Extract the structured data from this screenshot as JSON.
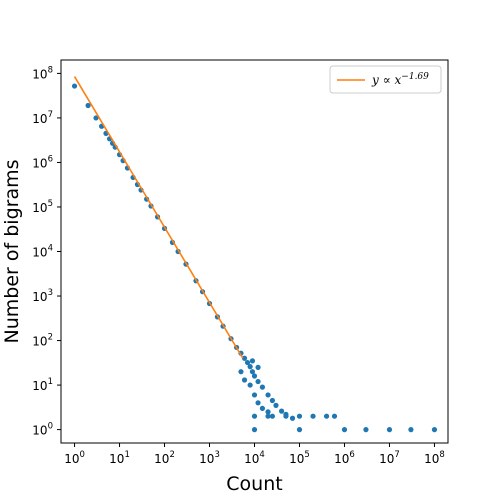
{
  "chart_data": {
    "type": "scatter",
    "title": "",
    "xlabel": "Count",
    "ylabel": "Number of bigrams",
    "xscale": "log",
    "yscale": "log",
    "xlim": [
      0.5,
      200000000
    ],
    "ylim": [
      0.5,
      200000000
    ],
    "x_ticks": [
      {
        "value": 1,
        "base": "10",
        "exp": "0"
      },
      {
        "value": 10,
        "base": "10",
        "exp": "1"
      },
      {
        "value": 100,
        "base": "10",
        "exp": "2"
      },
      {
        "value": 1000,
        "base": "10",
        "exp": "3"
      },
      {
        "value": 10000,
        "base": "10",
        "exp": "4"
      },
      {
        "value": 100000,
        "base": "10",
        "exp": "5"
      },
      {
        "value": 1000000,
        "base": "10",
        "exp": "6"
      },
      {
        "value": 10000000,
        "base": "10",
        "exp": "7"
      },
      {
        "value": 100000000,
        "base": "10",
        "exp": "8"
      }
    ],
    "y_ticks": [
      {
        "value": 1,
        "base": "10",
        "exp": "0"
      },
      {
        "value": 10,
        "base": "10",
        "exp": "1"
      },
      {
        "value": 100,
        "base": "10",
        "exp": "2"
      },
      {
        "value": 1000,
        "base": "10",
        "exp": "3"
      },
      {
        "value": 10000,
        "base": "10",
        "exp": "4"
      },
      {
        "value": 100000,
        "base": "10",
        "exp": "5"
      },
      {
        "value": 1000000,
        "base": "10",
        "exp": "6"
      },
      {
        "value": 10000000,
        "base": "10",
        "exp": "7"
      },
      {
        "value": 100000000,
        "base": "10",
        "exp": "8"
      }
    ],
    "grid": false,
    "legend": {
      "placement": "top-right",
      "entries": [
        {
          "label_prefix": "y ∝ x",
          "label_exp": "−1.69",
          "color": "#ff7f0e",
          "kind": "line"
        }
      ]
    },
    "series": [
      {
        "kind": "scatter",
        "color": "#1f77b4",
        "points": [
          [
            1,
            52000000
          ],
          [
            2,
            19000000
          ],
          [
            3,
            10000000
          ],
          [
            4,
            6500000
          ],
          [
            5,
            4500000
          ],
          [
            6,
            3400000
          ],
          [
            7,
            2700000
          ],
          [
            8,
            2200000
          ],
          [
            10,
            1500000
          ],
          [
            12,
            1100000
          ],
          [
            15,
            750000
          ],
          [
            20,
            460000
          ],
          [
            25,
            320000
          ],
          [
            30,
            240000
          ],
          [
            40,
            150000
          ],
          [
            50,
            105000
          ],
          [
            70,
            60000
          ],
          [
            100,
            33000
          ],
          [
            150,
            16000
          ],
          [
            200,
            10000
          ],
          [
            300,
            5200
          ],
          [
            500,
            2200
          ],
          [
            700,
            1250
          ],
          [
            1000,
            680
          ],
          [
            1500,
            340
          ],
          [
            2000,
            210
          ],
          [
            3000,
            110
          ],
          [
            4000,
            70
          ],
          [
            5000,
            52
          ],
          [
            6000,
            40
          ],
          [
            7000,
            32
          ],
          [
            8000,
            26
          ],
          [
            9000,
            20
          ],
          [
            10000,
            16
          ],
          [
            12000,
            12
          ],
          [
            15000,
            9
          ],
          [
            20000,
            6
          ],
          [
            25000,
            4.5
          ],
          [
            30000,
            3.5
          ],
          [
            40000,
            2.6
          ],
          [
            50000,
            2.2
          ],
          [
            70000,
            1.8
          ],
          [
            5000,
            20
          ],
          [
            6000,
            13
          ],
          [
            8000,
            10
          ],
          [
            10000,
            6
          ],
          [
            12000,
            4
          ],
          [
            15000,
            3
          ],
          [
            20000,
            2.5
          ],
          [
            25000,
            2
          ],
          [
            12000,
            25
          ],
          [
            9000,
            35
          ],
          [
            10000,
            2
          ],
          [
            20000,
            2
          ],
          [
            50000,
            2
          ],
          [
            100000,
            2
          ],
          [
            200000,
            2
          ],
          [
            400000,
            2
          ],
          [
            600000,
            2
          ],
          [
            10000,
            1
          ],
          [
            100000,
            1
          ],
          [
            1000000,
            1
          ],
          [
            3000000,
            1
          ],
          [
            10000000,
            1
          ],
          [
            30000000,
            1
          ],
          [
            100000000,
            1
          ]
        ]
      },
      {
        "kind": "line",
        "color": "#ff7f0e",
        "points": [
          [
            1,
            85000000
          ],
          [
            5500,
            40
          ]
        ]
      }
    ]
  }
}
